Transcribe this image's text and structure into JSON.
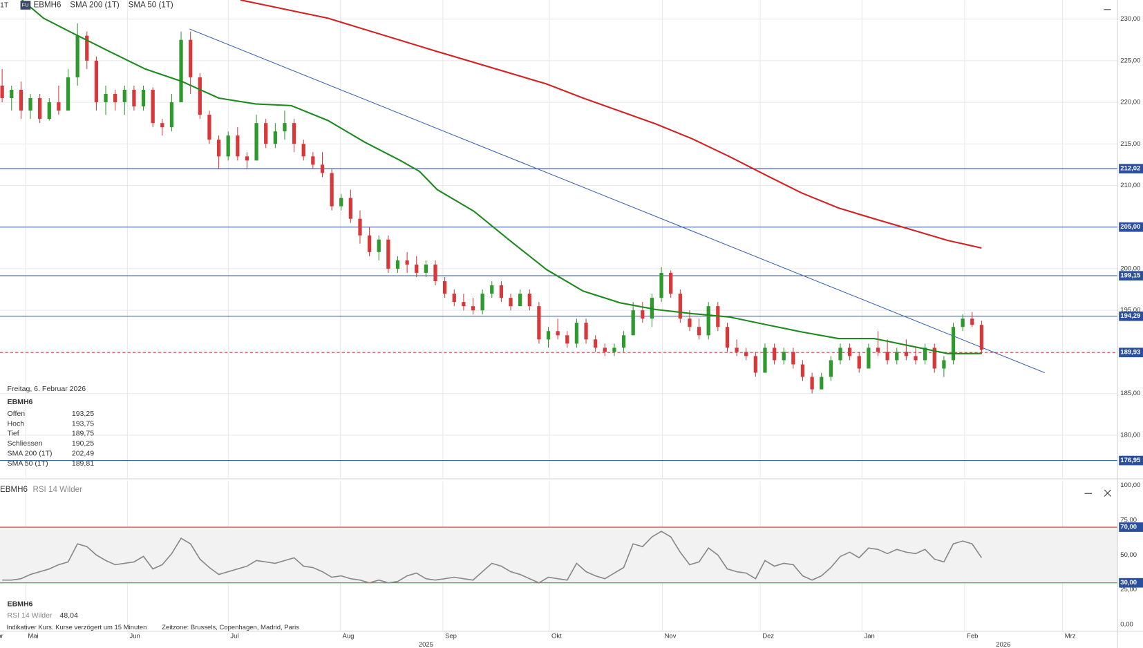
{
  "header": {
    "interval": "1T",
    "badge": "FU"
  },
  "info_box": {
    "date": "Freitag, 6. Februar 2026",
    "rows": [
      [
        "Offen",
        "193,25"
      ],
      [
        "Hoch",
        "193,75"
      ],
      [
        "Tief",
        "189,75"
      ],
      [
        "Schliessen",
        "190,25"
      ]
    ],
    "sma_values": [
      "202,49",
      "189,81"
    ]
  },
  "footer": {
    "note": "Indikativer Kurs. Kurse verzögert um 15 Minuten",
    "timezone": "Zeitzone: Brussels, Copenhagen, Madrid, Paris"
  },
  "chart_data": [
    {
      "type": "candlestick",
      "symbol": "EBMH6",
      "up_color": "#2e9a2e",
      "down_color": "#d8383a",
      "xlim": [
        -0.23,
        118.2
      ],
      "xticks": [
        {
          "value": -1.2,
          "label": "Apr"
        },
        {
          "value": 2.5,
          "label": "Mai"
        },
        {
          "value": 13.3,
          "label": "Jun"
        },
        {
          "value": 24.0,
          "label": "Jul"
        },
        {
          "value": 35.9,
          "label": "Aug"
        },
        {
          "value": 46.8,
          "label": "Sep"
        },
        {
          "value": 58.1,
          "label": "Okt"
        },
        {
          "value": 70.1,
          "label": "Nov"
        },
        {
          "value": 80.5,
          "label": "Dez"
        },
        {
          "value": 91.3,
          "label": "Jan"
        },
        {
          "value": 102.2,
          "label": "Feb"
        },
        {
          "value": 112.6,
          "label": "Mrz"
        }
      ],
      "year_ticks": [
        {
          "value": 45.0,
          "label": "2025"
        },
        {
          "value": 106.3,
          "label": "2026"
        }
      ],
      "ylim": [
        174.92,
        232.28
      ],
      "yticks": [
        {
          "value": 180,
          "label": "180,00"
        },
        {
          "value": 185,
          "label": "185,00"
        },
        {
          "value": 190,
          "label": "190,00"
        },
        {
          "value": 195,
          "label": "195,00"
        },
        {
          "value": 200,
          "label": "200,00"
        },
        {
          "value": 205,
          "label": "205,00"
        },
        {
          "value": 210,
          "label": "210,00"
        },
        {
          "value": 215,
          "label": "215,00"
        },
        {
          "value": 220,
          "label": "220,00"
        },
        {
          "value": 225,
          "label": "225,00"
        },
        {
          "value": 230,
          "label": "230,00"
        }
      ],
      "grid": true,
      "candles": [
        [
          222,
          224,
          220,
          220.5
        ],
        [
          220.5,
          222,
          219,
          221.5
        ],
        [
          221.5,
          222.5,
          218,
          219
        ],
        [
          219,
          221,
          218,
          220.5
        ],
        [
          220.5,
          221,
          217.5,
          218
        ],
        [
          218,
          220.5,
          217.8,
          220
        ],
        [
          220,
          222,
          218.5,
          219
        ],
        [
          219,
          224,
          219,
          223
        ],
        [
          223,
          229.5,
          222,
          228
        ],
        [
          228,
          228.5,
          224,
          225
        ],
        [
          225,
          225.5,
          219,
          220
        ],
        [
          220,
          222,
          218.5,
          221
        ],
        [
          221,
          221.5,
          219,
          220
        ],
        [
          220,
          222,
          218.5,
          221.5
        ],
        [
          221.5,
          222,
          219,
          219.5
        ],
        [
          219.5,
          222,
          219,
          221.5
        ],
        [
          221.5,
          221.8,
          217,
          217.5
        ],
        [
          217.5,
          218,
          216,
          217
        ],
        [
          217,
          221,
          216.5,
          220
        ],
        [
          220,
          228.5,
          220,
          227.5
        ],
        [
          227.5,
          228.5,
          221,
          223
        ],
        [
          223,
          223.5,
          218,
          218.5
        ],
        [
          218.5,
          219,
          215,
          215.5
        ],
        [
          215.5,
          216,
          212,
          213.5
        ],
        [
          213.5,
          216.5,
          213,
          216
        ],
        [
          216,
          217,
          213,
          213.5
        ],
        [
          213.5,
          214,
          212,
          213
        ],
        [
          213,
          218.5,
          213,
          217.5
        ],
        [
          217.5,
          218,
          214.5,
          215
        ],
        [
          215,
          217.5,
          214.5,
          216.5
        ],
        [
          216.5,
          219,
          215.5,
          217.5
        ],
        [
          217.5,
          218,
          214,
          215
        ],
        [
          215,
          215.5,
          213,
          213.5
        ],
        [
          213.5,
          214,
          212,
          212.5
        ],
        [
          212.5,
          214,
          211,
          211.5
        ],
        [
          211.5,
          212,
          207,
          207.5
        ],
        [
          207.5,
          209,
          207,
          208.5
        ],
        [
          208.5,
          209.5,
          205.5,
          206
        ],
        [
          206,
          207,
          203,
          204
        ],
        [
          204,
          205,
          201.5,
          202
        ],
        [
          202,
          204,
          201,
          203.5
        ],
        [
          203.5,
          204,
          199.5,
          200
        ],
        [
          200,
          201.5,
          199.5,
          201
        ],
        [
          201,
          202,
          199.5,
          200.5
        ],
        [
          200.5,
          201.5,
          199,
          199.5
        ],
        [
          199.5,
          201,
          199,
          200.5
        ],
        [
          200.5,
          201,
          198,
          198.5
        ],
        [
          198.5,
          199,
          196.5,
          197
        ],
        [
          197,
          197.5,
          195.5,
          196
        ],
        [
          196,
          197,
          195,
          195.5
        ],
        [
          195.5,
          196.5,
          194.5,
          195
        ],
        [
          195,
          197.5,
          194.5,
          197
        ],
        [
          197,
          198.5,
          196.5,
          198
        ],
        [
          198,
          198.5,
          196,
          196.5
        ],
        [
          196.5,
          197,
          195,
          195.5
        ],
        [
          195.5,
          197.5,
          195.5,
          197
        ],
        [
          197,
          197.5,
          195,
          195.5
        ],
        [
          195.5,
          196,
          191,
          191.5
        ],
        [
          191.5,
          193,
          190.5,
          192.5
        ],
        [
          192.5,
          194,
          191.5,
          192
        ],
        [
          192,
          192.5,
          190.5,
          191
        ],
        [
          191,
          194,
          190.5,
          193.5
        ],
        [
          193.5,
          194,
          191,
          191.5
        ],
        [
          191.5,
          192,
          190,
          190.5
        ],
        [
          190.5,
          191,
          189.5,
          190
        ],
        [
          190,
          191,
          189.5,
          190.5
        ],
        [
          190.5,
          192.5,
          190,
          192
        ],
        [
          192,
          196,
          192,
          195
        ],
        [
          195,
          196,
          193.5,
          194
        ],
        [
          194,
          197,
          193,
          196.5
        ],
        [
          196.5,
          200.2,
          196,
          199.5
        ],
        [
          199.5,
          199.8,
          196.5,
          197
        ],
        [
          197,
          197.5,
          193.5,
          194
        ],
        [
          194,
          195,
          192.5,
          193
        ],
        [
          193,
          194,
          191.5,
          192
        ],
        [
          192,
          196,
          191.5,
          195.5
        ],
        [
          195.5,
          196,
          192.5,
          193
        ],
        [
          193,
          193.5,
          190,
          190.5
        ],
        [
          190.5,
          191.5,
          189.5,
          190
        ],
        [
          190,
          190.5,
          189,
          189.5
        ],
        [
          189.5,
          190,
          187,
          187.5
        ],
        [
          187.5,
          191,
          187.5,
          190.5
        ],
        [
          190.5,
          191,
          188.5,
          189
        ],
        [
          189,
          190.5,
          188.5,
          190
        ],
        [
          190,
          190.5,
          188,
          188.5
        ],
        [
          188.5,
          189,
          186.5,
          187
        ],
        [
          187,
          187.5,
          185,
          185.5
        ],
        [
          185.5,
          187.5,
          185.5,
          187
        ],
        [
          187,
          189.5,
          186.5,
          189
        ],
        [
          189,
          191,
          188.5,
          190.5
        ],
        [
          190.5,
          191,
          189,
          189.5
        ],
        [
          189.5,
          190,
          187.5,
          188
        ],
        [
          188,
          191,
          188,
          190.5
        ],
        [
          190.5,
          192.5,
          189.5,
          190
        ],
        [
          190,
          191.5,
          188.5,
          189
        ],
        [
          189,
          190.5,
          188.5,
          190
        ],
        [
          190,
          191.5,
          189,
          189.5
        ],
        [
          189.5,
          190.5,
          188.5,
          189
        ],
        [
          189,
          191,
          188.5,
          190.5
        ],
        [
          190.5,
          191,
          187.5,
          188
        ],
        [
          188,
          189.5,
          187,
          189
        ],
        [
          189,
          193.5,
          188.5,
          193
        ],
        [
          193,
          194.5,
          192.5,
          194
        ],
        [
          194,
          194.8,
          193,
          193.25
        ],
        [
          193.25,
          193.75,
          189.75,
          190.25
        ]
      ],
      "lines": [
        {
          "name": "SMA 200 (1T)",
          "color": "#d42020",
          "x": [
            25.3,
            34.6,
            46.2,
            57.8,
            61.7,
            69.4,
            73.3,
            77.2,
            81.0,
            84.9,
            88.8,
            92.6,
            96.5,
            100.4,
            104
          ],
          "values": [
            232.3,
            230.1,
            226.1,
            222.2,
            220.5,
            217.4,
            215.6,
            213.5,
            211.3,
            209.1,
            207.3,
            206.0,
            204.7,
            203.4,
            202.49
          ]
        },
        {
          "name": "SMA 50 (1T)",
          "color": "#1c8a1c",
          "x": [
            2.1,
            4.4,
            7.5,
            11.4,
            15.2,
            19.1,
            23.0,
            26.9,
            30.7,
            34.6,
            38.5,
            42.3,
            44.3,
            46.2,
            50.1,
            53.9,
            57.8,
            61.7,
            65.6,
            69.4,
            73.3,
            77.2,
            81.0,
            84.9,
            88.8,
            92.6,
            96.5,
            100.4,
            104
          ],
          "values": [
            232.3,
            230.1,
            228.3,
            226.1,
            224.0,
            222.5,
            220.5,
            219.8,
            219.6,
            217.8,
            215.2,
            213.0,
            211.7,
            209.5,
            206.9,
            203.4,
            199.9,
            197.3,
            195.9,
            195.1,
            194.6,
            194.2,
            193.3,
            192.4,
            191.6,
            191.6,
            190.7,
            189.8,
            189.81
          ]
        }
      ],
      "trend_line": {
        "color": "#3a62b0",
        "x": [
          19.9,
          110.7
        ],
        "values": [
          228.8,
          187.5
        ]
      },
      "levels": [
        {
          "value": 212.02,
          "label": "212,02"
        },
        {
          "value": 205.0,
          "label": "205,00"
        },
        {
          "value": 199.15,
          "label": "199,15"
        },
        {
          "value": 194.29,
          "label": "194,29"
        },
        {
          "value": 189.93,
          "label": "189,93",
          "dashed": true
        },
        {
          "value": 176.95,
          "label": "176,95"
        }
      ],
      "level_color": "#2a4f9e"
    },
    {
      "type": "line",
      "name": "RSI 14 Wilder",
      "color": "#8a8a8a",
      "last_value_label": "48,04",
      "ylim": [
        -4.7,
        103.1
      ],
      "yticks": [
        {
          "value": 0,
          "label": "0,00"
        },
        {
          "value": 25,
          "label": "25,00"
        },
        {
          "value": 50,
          "label": "50,00"
        },
        {
          "value": 75,
          "label": "75,00"
        },
        {
          "value": 100,
          "label": "100,00"
        }
      ],
      "bands": [
        {
          "value": 70,
          "label": "70,00",
          "color": "#e03030"
        },
        {
          "value": 30,
          "label": "30,00",
          "color": "#2ea02e"
        }
      ],
      "values": [
        32,
        32,
        33,
        36,
        38,
        40,
        43,
        45,
        58,
        56,
        50,
        46,
        43,
        44,
        45,
        49,
        40,
        43,
        51,
        62,
        58,
        47,
        41,
        36,
        38,
        40,
        42,
        46,
        45,
        44,
        46,
        48,
        42,
        41,
        38,
        34,
        35,
        33,
        32,
        30,
        32,
        30,
        31,
        35,
        37,
        33,
        32,
        33,
        34,
        33,
        32,
        38,
        44,
        42,
        38,
        36,
        33,
        30,
        34,
        33,
        32,
        44,
        38,
        35,
        33,
        37,
        41,
        58,
        56,
        63,
        67,
        63,
        52,
        43,
        45,
        55,
        50,
        40,
        38,
        37,
        33,
        46,
        42,
        44,
        43,
        35,
        32,
        35,
        41,
        49,
        52,
        48,
        55,
        54,
        51,
        54,
        52,
        51,
        54,
        47,
        45,
        58,
        60,
        58,
        48.04
      ]
    }
  ]
}
